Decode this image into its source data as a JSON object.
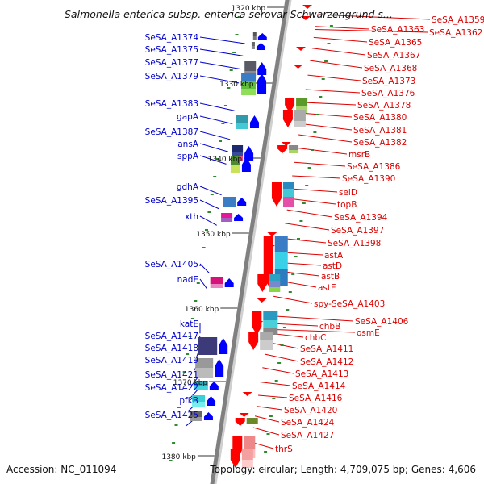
{
  "title": "Salmonella enterica subsp. enterica serovar Schwarzengrund s...",
  "footer": {
    "accession": "Accession: NC_011094",
    "topology": "Topology: circular; Length: 4,709,075 bp; Genes: 4,606"
  },
  "colors": {
    "backbone": "#808080",
    "forward_label": "#0000cc",
    "reverse_label": "#dd0000",
    "forward_feature": "#0000ff",
    "reverse_feature": "#ff0000",
    "tick": "#2e8b2e"
  },
  "scale_labels": [
    "1320 kbp",
    "1330 kbp",
    "1340 kbp",
    "1350 kbp",
    "1360 kbp",
    "1370 kbp",
    "1380 kbp"
  ],
  "forward_genes": [
    "SeSA_A1374",
    "SeSA_A1375",
    "SeSA_A1377",
    "SeSA_A1379",
    "SeSA_A1383",
    "gapA",
    "SeSA_A1387",
    "ansA",
    "sppA",
    "gdhA",
    "SeSA_A1395",
    "xth",
    "SeSA_A1405",
    "nadE",
    "katE",
    "SeSA_A1417",
    "SeSA_A1418",
    "SeSA_A1419",
    "SeSA_A1421",
    "SeSA_A1422",
    "pfkB",
    "SeSA_A1425"
  ],
  "reverse_genes": [
    "SeSA_A1359",
    "SeSA_A1362",
    "SeSA_A1363",
    "SeSA_A1365",
    "SeSA_A1367",
    "SeSA_A1368",
    "SeSA_A1373",
    "SeSA_A1376",
    "SeSA_A1378",
    "SeSA_A1380",
    "SeSA_A1381",
    "SeSA_A1382",
    "msrB",
    "SeSA_A1386",
    "SeSA_A1390",
    "selD",
    "topB",
    "SeSA_A1394",
    "SeSA_A1397",
    "SeSA_A1398",
    "astA",
    "astD",
    "astB",
    "astE",
    "spy-SeSA_A1403",
    "SeSA_A1406",
    "osmE",
    "chbB",
    "chbC",
    "SeSA_A1411",
    "SeSA_A1412",
    "SeSA_A1413",
    "SeSA_A1414",
    "SeSA_A1416",
    "SeSA_A1420",
    "SeSA_A1424",
    "SeSA_A1427",
    "thrS"
  ]
}
